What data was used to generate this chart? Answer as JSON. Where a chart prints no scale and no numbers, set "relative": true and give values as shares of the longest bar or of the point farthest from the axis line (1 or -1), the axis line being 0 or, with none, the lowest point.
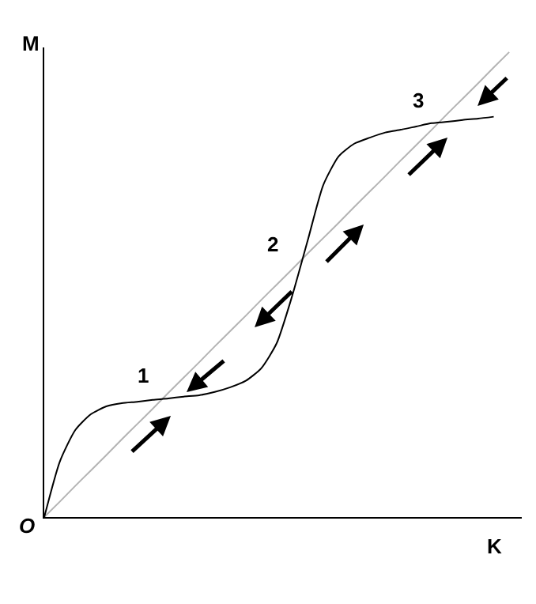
{
  "chart_data": {
    "type": "line",
    "relative": true,
    "marker": "none",
    "line_style": "solid",
    "xlabel": "K",
    "ylabel": "M",
    "categories": [
      null,
      null,
      null,
      null,
      null,
      null,
      null,
      null,
      null,
      null,
      null,
      null,
      null,
      null,
      null,
      null,
      null,
      null,
      null,
      null,
      null,
      null,
      null,
      null,
      null,
      null,
      null,
      null,
      null,
      null,
      null
    ],
    "series": [
      {
        "color": "#b4b4b4",
        "values": [
          0,
          0.033,
          0.067,
          0.1,
          0.133,
          0.167,
          0.2,
          0.233,
          0.267,
          0.3,
          0.333,
          0.367,
          0.4,
          0.433,
          0.467,
          0.5,
          0.533,
          0.567,
          0.6,
          0.633,
          0.667,
          0.7,
          0.733,
          0.767,
          0.8,
          0.833,
          0.867,
          0.9,
          0.933,
          0.967,
          1
        ]
      },
      {
        "color": "#000000",
        "values": [
          0,
          0.119,
          0.187,
          0.221,
          0.238,
          0.245,
          0.248,
          0.252,
          0.255,
          0.259,
          0.262,
          0.269,
          0.279,
          0.293,
          0.32,
          0.374,
          0.476,
          0.595,
          0.714,
          0.776,
          0.803,
          0.816,
          0.827,
          0.833,
          0.84,
          0.847,
          0.85,
          0.854,
          0.857,
          0.861,
          null
        ]
      }
    ],
    "annotations": [
      "O",
      "1",
      "2",
      "3"
    ]
  }
}
